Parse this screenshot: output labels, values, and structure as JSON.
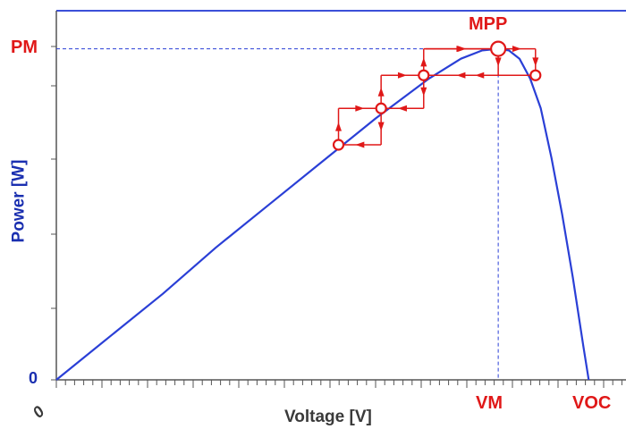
{
  "labels": {
    "y_axis": "Power [W]",
    "x_axis": "Voltage [V]",
    "pm": "PM",
    "mpp": "MPP",
    "vm": "VM",
    "voc": "VOC",
    "y_zero": "0",
    "x_zero": "0"
  },
  "colors": {
    "curve": "#2a3fd6",
    "marker": "#e01818",
    "axis": "#555555",
    "guide": "#2a3fd6",
    "frame": "#3b4fd8"
  },
  "chart_data": {
    "type": "line",
    "title": "",
    "xlabel": "Voltage [V]",
    "ylabel": "Power [W]",
    "x_tick_labels": [
      "0",
      "VM",
      "VOC"
    ],
    "y_tick_labels": [
      "0",
      "PM"
    ],
    "series": [
      {
        "x": [
          0,
          0.1,
          0.2,
          0.3,
          0.4,
          0.5,
          0.6,
          0.7,
          0.76,
          0.8,
          0.83,
          0.85,
          0.87,
          0.89,
          0.91,
          0.93,
          0.95,
          0.97,
          0.99,
          1.0
        ],
        "y": [
          0,
          0.13,
          0.26,
          0.4,
          0.53,
          0.66,
          0.79,
          0.91,
          0.97,
          0.995,
          1.0,
          0.995,
          0.97,
          0.91,
          0.82,
          0.67,
          0.5,
          0.31,
          0.1,
          0
        ]
      }
    ],
    "operating_points": [
      {
        "x": 0.53,
        "y": 0.71
      },
      {
        "x": 0.61,
        "y": 0.82
      },
      {
        "x": 0.69,
        "y": 0.92
      },
      {
        "x": 0.83,
        "y": 1.0
      },
      {
        "x": 0.9,
        "y": 0.92
      }
    ],
    "mpp": {
      "x": 0.83,
      "y": 1.0
    },
    "xlim": [
      0,
      1.07
    ],
    "ylim": [
      0,
      1.115
    ]
  }
}
